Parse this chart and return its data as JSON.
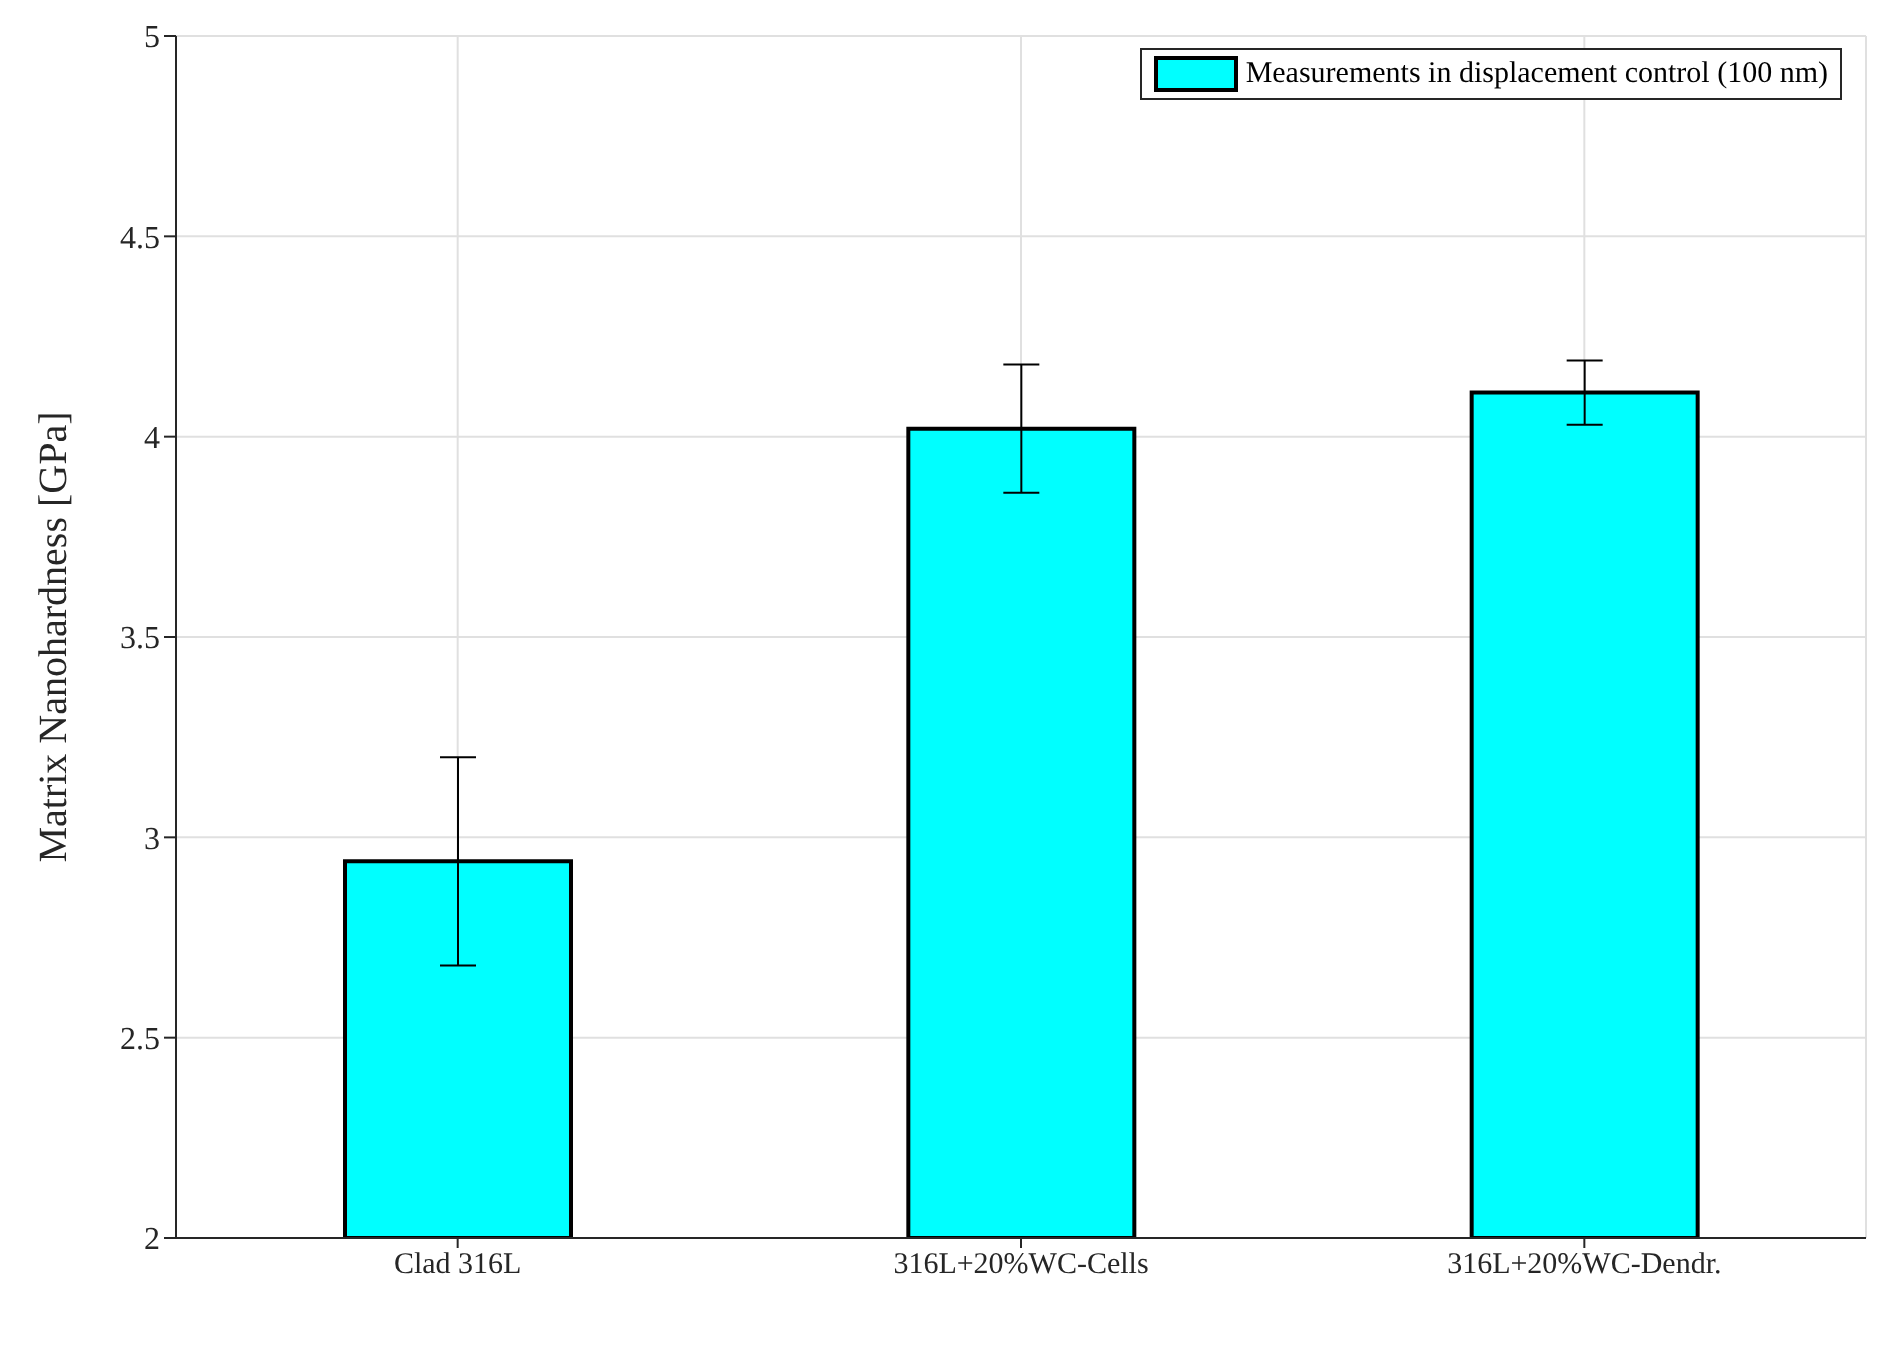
{
  "chart_data": {
    "type": "bar",
    "ylabel": "Matrix Nanohardness [GPa]",
    "categories": [
      "Clad 316L",
      "316L+20%WC-Cells",
      "316L+20%WC-Dendr."
    ],
    "series": [
      {
        "name": "Measurements in displacement control (100 nm)",
        "color": "#00ffff",
        "values": [
          2.94,
          4.02,
          4.11
        ],
        "errors": [
          0.26,
          0.16,
          0.08
        ]
      }
    ],
    "ylim": [
      2,
      5
    ],
    "yticks": [
      2,
      2.5,
      3,
      3.5,
      4,
      4.5,
      5
    ],
    "grid": true,
    "legend": "top right"
  }
}
